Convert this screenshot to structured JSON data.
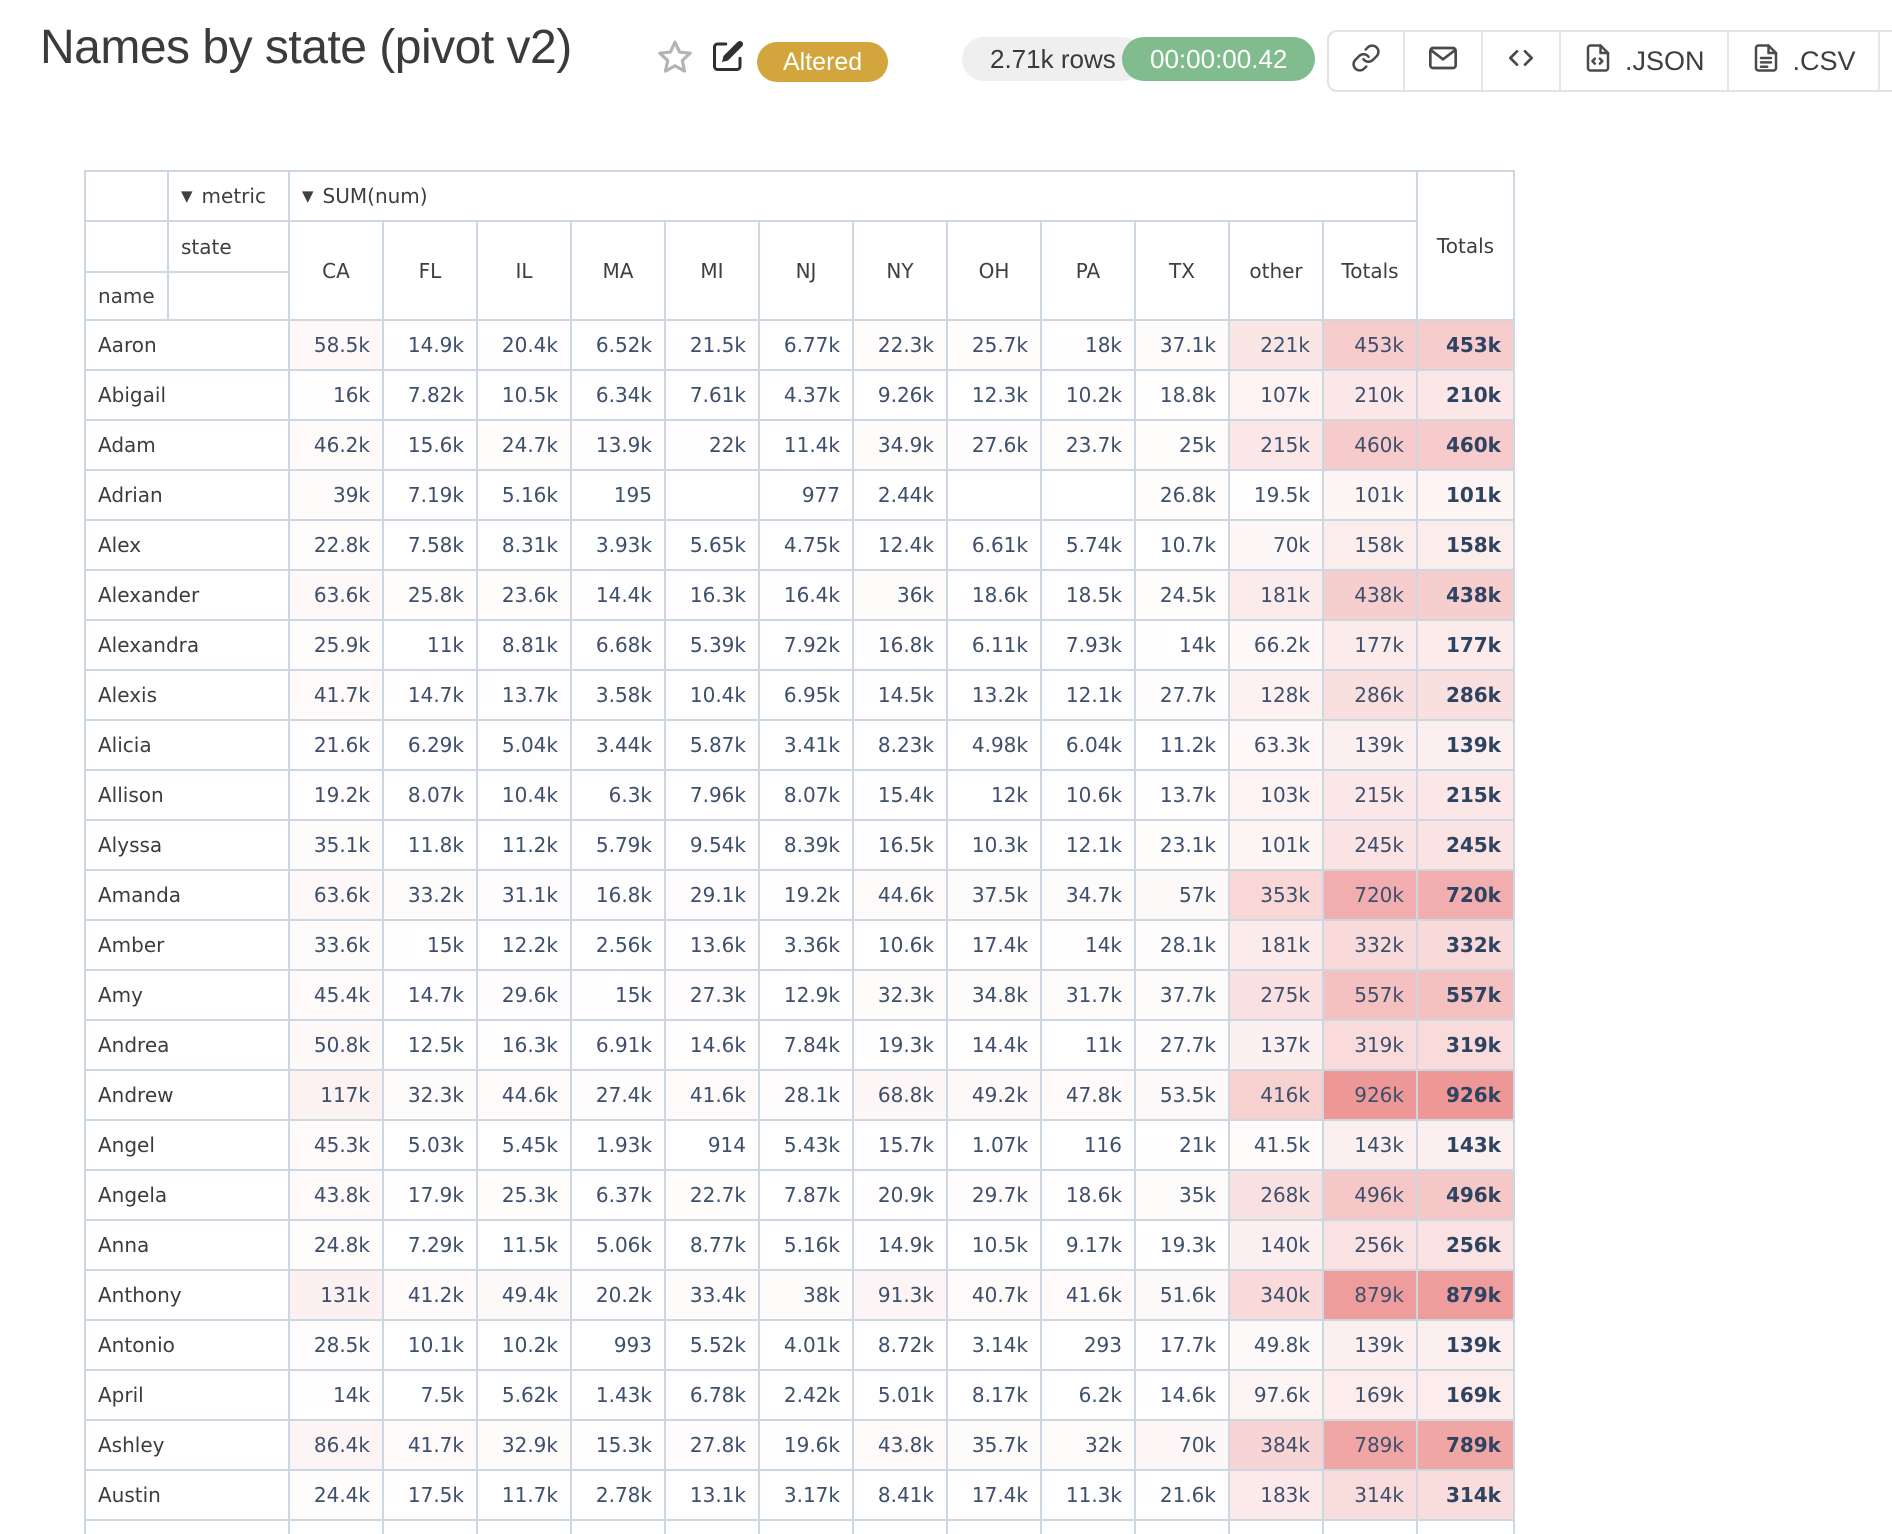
{
  "header": {
    "title": "Names by state (pivot v2)",
    "status_badge": "Altered",
    "rows_count": "2.71k rows",
    "elapsed_time": "00:00:00.42",
    "export_json_label": ".JSON",
    "export_csv_label": ".CSV"
  },
  "icons": {
    "dropdown_arrow": "▼"
  },
  "colors": {
    "status_badge_bg": "#d2a63d",
    "timer_badge_bg": "#80bc8d",
    "rows_badge_bg": "#efefef",
    "grid_line": "#ccd7e2",
    "heat_max": "#ee9797",
    "value_text": "#3d4f6b"
  },
  "pivot": {
    "metric_dropdown": "metric",
    "value_dropdown": "SUM(num)",
    "col_axis_label": "state",
    "row_axis_label": "name",
    "grand_total_label": "Totals",
    "columns": [
      "CA",
      "FL",
      "IL",
      "MA",
      "MI",
      "NJ",
      "NY",
      "OH",
      "PA",
      "TX",
      "other",
      "Totals"
    ],
    "max_value": 926000,
    "rows": [
      {
        "name": "Aaron",
        "values": [
          "58.5k",
          "14.9k",
          "20.4k",
          "6.52k",
          "21.5k",
          "6.77k",
          "22.3k",
          "25.7k",
          "18k",
          "37.1k",
          "221k",
          "453k"
        ],
        "total": "453k"
      },
      {
        "name": "Abigail",
        "values": [
          "16k",
          "7.82k",
          "10.5k",
          "6.34k",
          "7.61k",
          "4.37k",
          "9.26k",
          "12.3k",
          "10.2k",
          "18.8k",
          "107k",
          "210k"
        ],
        "total": "210k"
      },
      {
        "name": "Adam",
        "values": [
          "46.2k",
          "15.6k",
          "24.7k",
          "13.9k",
          "22k",
          "11.4k",
          "34.9k",
          "27.6k",
          "23.7k",
          "25k",
          "215k",
          "460k"
        ],
        "total": "460k"
      },
      {
        "name": "Adrian",
        "values": [
          "39k",
          "7.19k",
          "5.16k",
          "195",
          "",
          "977",
          "2.44k",
          "",
          "",
          "26.8k",
          "19.5k",
          "101k"
        ],
        "total": "101k"
      },
      {
        "name": "Alex",
        "values": [
          "22.8k",
          "7.58k",
          "8.31k",
          "3.93k",
          "5.65k",
          "4.75k",
          "12.4k",
          "6.61k",
          "5.74k",
          "10.7k",
          "70k",
          "158k"
        ],
        "total": "158k"
      },
      {
        "name": "Alexander",
        "values": [
          "63.6k",
          "25.8k",
          "23.6k",
          "14.4k",
          "16.3k",
          "16.4k",
          "36k",
          "18.6k",
          "18.5k",
          "24.5k",
          "181k",
          "438k"
        ],
        "total": "438k"
      },
      {
        "name": "Alexandra",
        "values": [
          "25.9k",
          "11k",
          "8.81k",
          "6.68k",
          "5.39k",
          "7.92k",
          "16.8k",
          "6.11k",
          "7.93k",
          "14k",
          "66.2k",
          "177k"
        ],
        "total": "177k"
      },
      {
        "name": "Alexis",
        "values": [
          "41.7k",
          "14.7k",
          "13.7k",
          "3.58k",
          "10.4k",
          "6.95k",
          "14.5k",
          "13.2k",
          "12.1k",
          "27.7k",
          "128k",
          "286k"
        ],
        "total": "286k"
      },
      {
        "name": "Alicia",
        "values": [
          "21.6k",
          "6.29k",
          "5.04k",
          "3.44k",
          "5.87k",
          "3.41k",
          "8.23k",
          "4.98k",
          "6.04k",
          "11.2k",
          "63.3k",
          "139k"
        ],
        "total": "139k"
      },
      {
        "name": "Allison",
        "values": [
          "19.2k",
          "8.07k",
          "10.4k",
          "6.3k",
          "7.96k",
          "8.07k",
          "15.4k",
          "12k",
          "10.6k",
          "13.7k",
          "103k",
          "215k"
        ],
        "total": "215k"
      },
      {
        "name": "Alyssa",
        "values": [
          "35.1k",
          "11.8k",
          "11.2k",
          "5.79k",
          "9.54k",
          "8.39k",
          "16.5k",
          "10.3k",
          "12.1k",
          "23.1k",
          "101k",
          "245k"
        ],
        "total": "245k"
      },
      {
        "name": "Amanda",
        "values": [
          "63.6k",
          "33.2k",
          "31.1k",
          "16.8k",
          "29.1k",
          "19.2k",
          "44.6k",
          "37.5k",
          "34.7k",
          "57k",
          "353k",
          "720k"
        ],
        "total": "720k"
      },
      {
        "name": "Amber",
        "values": [
          "33.6k",
          "15k",
          "12.2k",
          "2.56k",
          "13.6k",
          "3.36k",
          "10.6k",
          "17.4k",
          "14k",
          "28.1k",
          "181k",
          "332k"
        ],
        "total": "332k"
      },
      {
        "name": "Amy",
        "values": [
          "45.4k",
          "14.7k",
          "29.6k",
          "15k",
          "27.3k",
          "12.9k",
          "32.3k",
          "34.8k",
          "31.7k",
          "37.7k",
          "275k",
          "557k"
        ],
        "total": "557k"
      },
      {
        "name": "Andrea",
        "values": [
          "50.8k",
          "12.5k",
          "16.3k",
          "6.91k",
          "14.6k",
          "7.84k",
          "19.3k",
          "14.4k",
          "11k",
          "27.7k",
          "137k",
          "319k"
        ],
        "total": "319k"
      },
      {
        "name": "Andrew",
        "values": [
          "117k",
          "32.3k",
          "44.6k",
          "27.4k",
          "41.6k",
          "28.1k",
          "68.8k",
          "49.2k",
          "47.8k",
          "53.5k",
          "416k",
          "926k"
        ],
        "total": "926k"
      },
      {
        "name": "Angel",
        "values": [
          "45.3k",
          "5.03k",
          "5.45k",
          "1.93k",
          "914",
          "5.43k",
          "15.7k",
          "1.07k",
          "116",
          "21k",
          "41.5k",
          "143k"
        ],
        "total": "143k"
      },
      {
        "name": "Angela",
        "values": [
          "43.8k",
          "17.9k",
          "25.3k",
          "6.37k",
          "22.7k",
          "7.87k",
          "20.9k",
          "29.7k",
          "18.6k",
          "35k",
          "268k",
          "496k"
        ],
        "total": "496k"
      },
      {
        "name": "Anna",
        "values": [
          "24.8k",
          "7.29k",
          "11.5k",
          "5.06k",
          "8.77k",
          "5.16k",
          "14.9k",
          "10.5k",
          "9.17k",
          "19.3k",
          "140k",
          "256k"
        ],
        "total": "256k"
      },
      {
        "name": "Anthony",
        "values": [
          "131k",
          "41.2k",
          "49.4k",
          "20.2k",
          "33.4k",
          "38k",
          "91.3k",
          "40.7k",
          "41.6k",
          "51.6k",
          "340k",
          "879k"
        ],
        "total": "879k"
      },
      {
        "name": "Antonio",
        "values": [
          "28.5k",
          "10.1k",
          "10.2k",
          "993",
          "5.52k",
          "4.01k",
          "8.72k",
          "3.14k",
          "293",
          "17.7k",
          "49.8k",
          "139k"
        ],
        "total": "139k"
      },
      {
        "name": "April",
        "values": [
          "14k",
          "7.5k",
          "5.62k",
          "1.43k",
          "6.78k",
          "2.42k",
          "5.01k",
          "8.17k",
          "6.2k",
          "14.6k",
          "97.6k",
          "169k"
        ],
        "total": "169k"
      },
      {
        "name": "Ashley",
        "values": [
          "86.4k",
          "41.7k",
          "32.9k",
          "15.3k",
          "27.8k",
          "19.6k",
          "43.8k",
          "35.7k",
          "32k",
          "70k",
          "384k",
          "789k"
        ],
        "total": "789k"
      },
      {
        "name": "Austin",
        "values": [
          "24.4k",
          "17.5k",
          "11.7k",
          "2.78k",
          "13.1k",
          "3.17k",
          "8.41k",
          "17.4k",
          "11.3k",
          "21.6k",
          "183k",
          "314k"
        ],
        "total": "314k"
      }
    ]
  }
}
